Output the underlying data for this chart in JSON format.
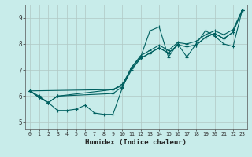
{
  "xlabel": "Humidex (Indice chaleur)",
  "bg_color": "#c8ecea",
  "grid_color": "#b0c8c4",
  "line_color": "#006060",
  "xlim": [
    -0.5,
    23.5
  ],
  "ylim": [
    4.75,
    9.5
  ],
  "xticks": [
    0,
    1,
    2,
    3,
    4,
    5,
    6,
    7,
    8,
    9,
    10,
    11,
    12,
    13,
    14,
    15,
    16,
    17,
    18,
    19,
    20,
    21,
    22,
    23
  ],
  "yticks": [
    5,
    6,
    7,
    8,
    9
  ],
  "line1_x": [
    0,
    1,
    2,
    3,
    4,
    5,
    6,
    7,
    8,
    9,
    10,
    11,
    12,
    13,
    14,
    15,
    16,
    17,
    18,
    19,
    20,
    21,
    22,
    23
  ],
  "line1_y": [
    6.2,
    6.0,
    5.75,
    5.45,
    5.45,
    5.5,
    5.65,
    5.35,
    5.3,
    5.3,
    6.3,
    7.1,
    7.5,
    8.5,
    8.65,
    7.5,
    8.0,
    7.5,
    8.0,
    8.5,
    8.3,
    8.0,
    7.9,
    9.3
  ],
  "line2_x": [
    0,
    1,
    2,
    3,
    9,
    10,
    11,
    12,
    13,
    14,
    15,
    16,
    17,
    18,
    19,
    20,
    21,
    22,
    23
  ],
  "line2_y": [
    6.2,
    5.95,
    5.75,
    6.0,
    6.25,
    6.4,
    7.1,
    7.55,
    7.75,
    7.95,
    7.75,
    8.05,
    8.0,
    8.1,
    8.35,
    8.5,
    8.35,
    8.55,
    9.3
  ],
  "line3_x": [
    0,
    1,
    2,
    3,
    9,
    10,
    11,
    12,
    13,
    14,
    15,
    16,
    17,
    18,
    19,
    20,
    21,
    22,
    23
  ],
  "line3_y": [
    6.2,
    5.95,
    5.75,
    6.0,
    6.1,
    6.35,
    7.0,
    7.45,
    7.65,
    7.85,
    7.65,
    7.95,
    7.9,
    7.95,
    8.25,
    8.4,
    8.2,
    8.45,
    9.3
  ],
  "line4_x": [
    0,
    9,
    10,
    11,
    12,
    13,
    14,
    15,
    16,
    17,
    18,
    19,
    20,
    21,
    22,
    23
  ],
  "line4_y": [
    6.2,
    6.25,
    6.45,
    7.05,
    7.45,
    7.65,
    7.85,
    7.65,
    7.95,
    7.9,
    7.95,
    8.25,
    8.4,
    8.2,
    8.45,
    9.3
  ]
}
